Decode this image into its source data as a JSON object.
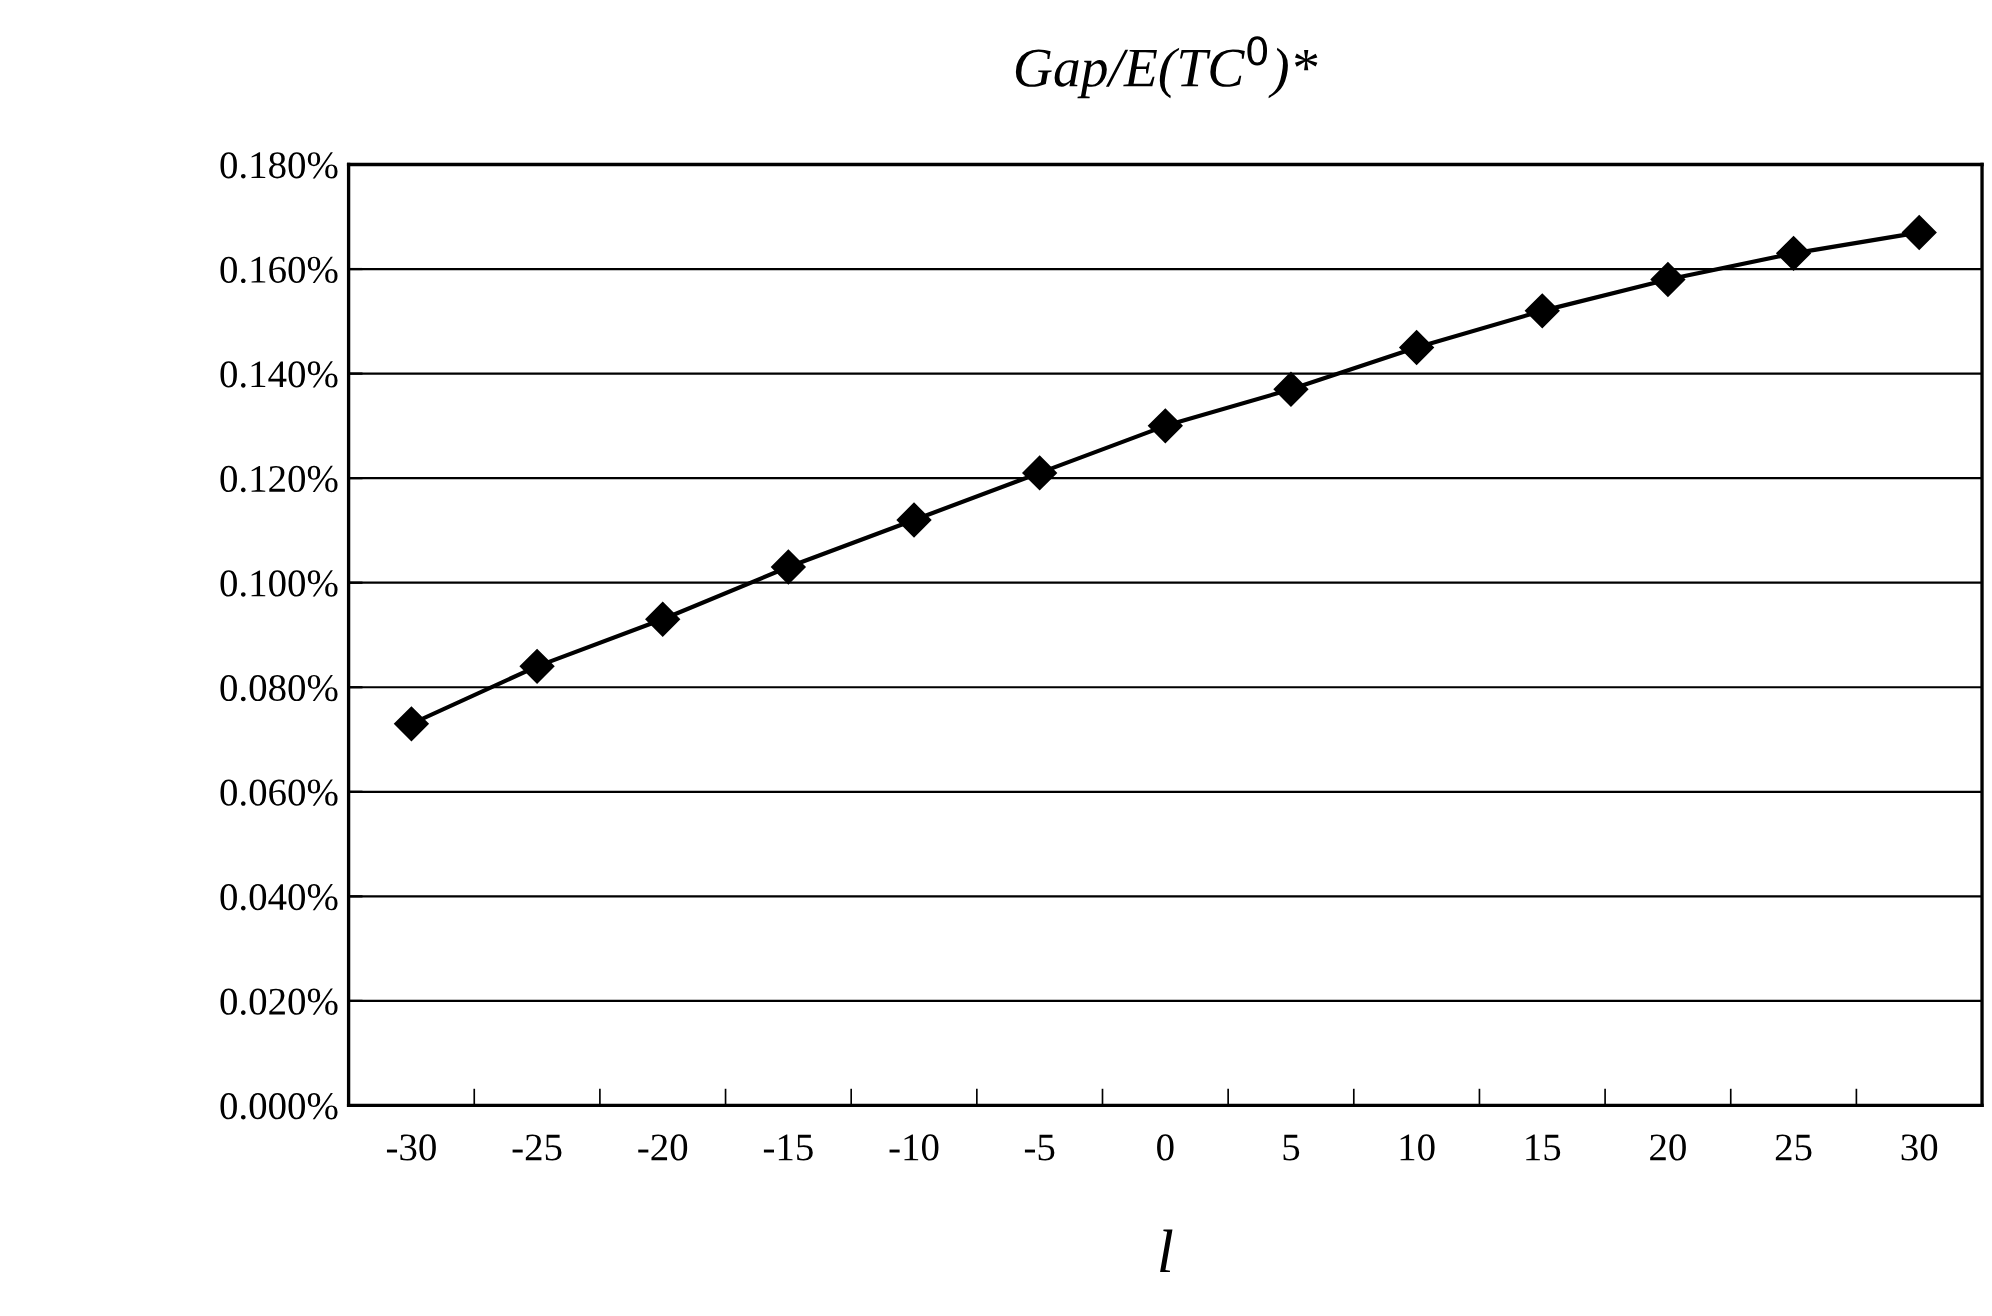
{
  "chart_data": {
    "type": "line",
    "title": "Gap/E(TC$^{0}$)*",
    "xlabel": "l",
    "categories": [
      "-30",
      "-25",
      "-20",
      "-15",
      "-10",
      "-5",
      "0",
      "5",
      "10",
      "15",
      "20",
      "25",
      "30"
    ],
    "series": [
      {
        "color": "#000000",
        "values": [
          0.073,
          0.084,
          0.093,
          0.103,
          0.112,
          0.121,
          0.13,
          0.137,
          0.145,
          0.152,
          0.158,
          0.163,
          0.167
        ]
      }
    ],
    "ylim": [
      0,
      0.18
    ],
    "yticks": [
      {
        "value": 0,
        "label": "0.000%"
      },
      {
        "value": 0.02,
        "label": "0.020%"
      },
      {
        "value": 0.04,
        "label": "0.040%"
      },
      {
        "value": 0.06,
        "label": "0.060%"
      },
      {
        "value": 0.08,
        "label": "0.080%"
      },
      {
        "value": 0.1,
        "label": "0.100%"
      },
      {
        "value": 0.12,
        "label": "0.120%"
      },
      {
        "value": 0.14,
        "label": "0.140%"
      },
      {
        "value": 0.16,
        "label": "0.160%"
      },
      {
        "value": 0.18,
        "label": "0.180%"
      }
    ],
    "grid": "y",
    "legend": false,
    "marker": "diamond",
    "line_style": "solid"
  }
}
